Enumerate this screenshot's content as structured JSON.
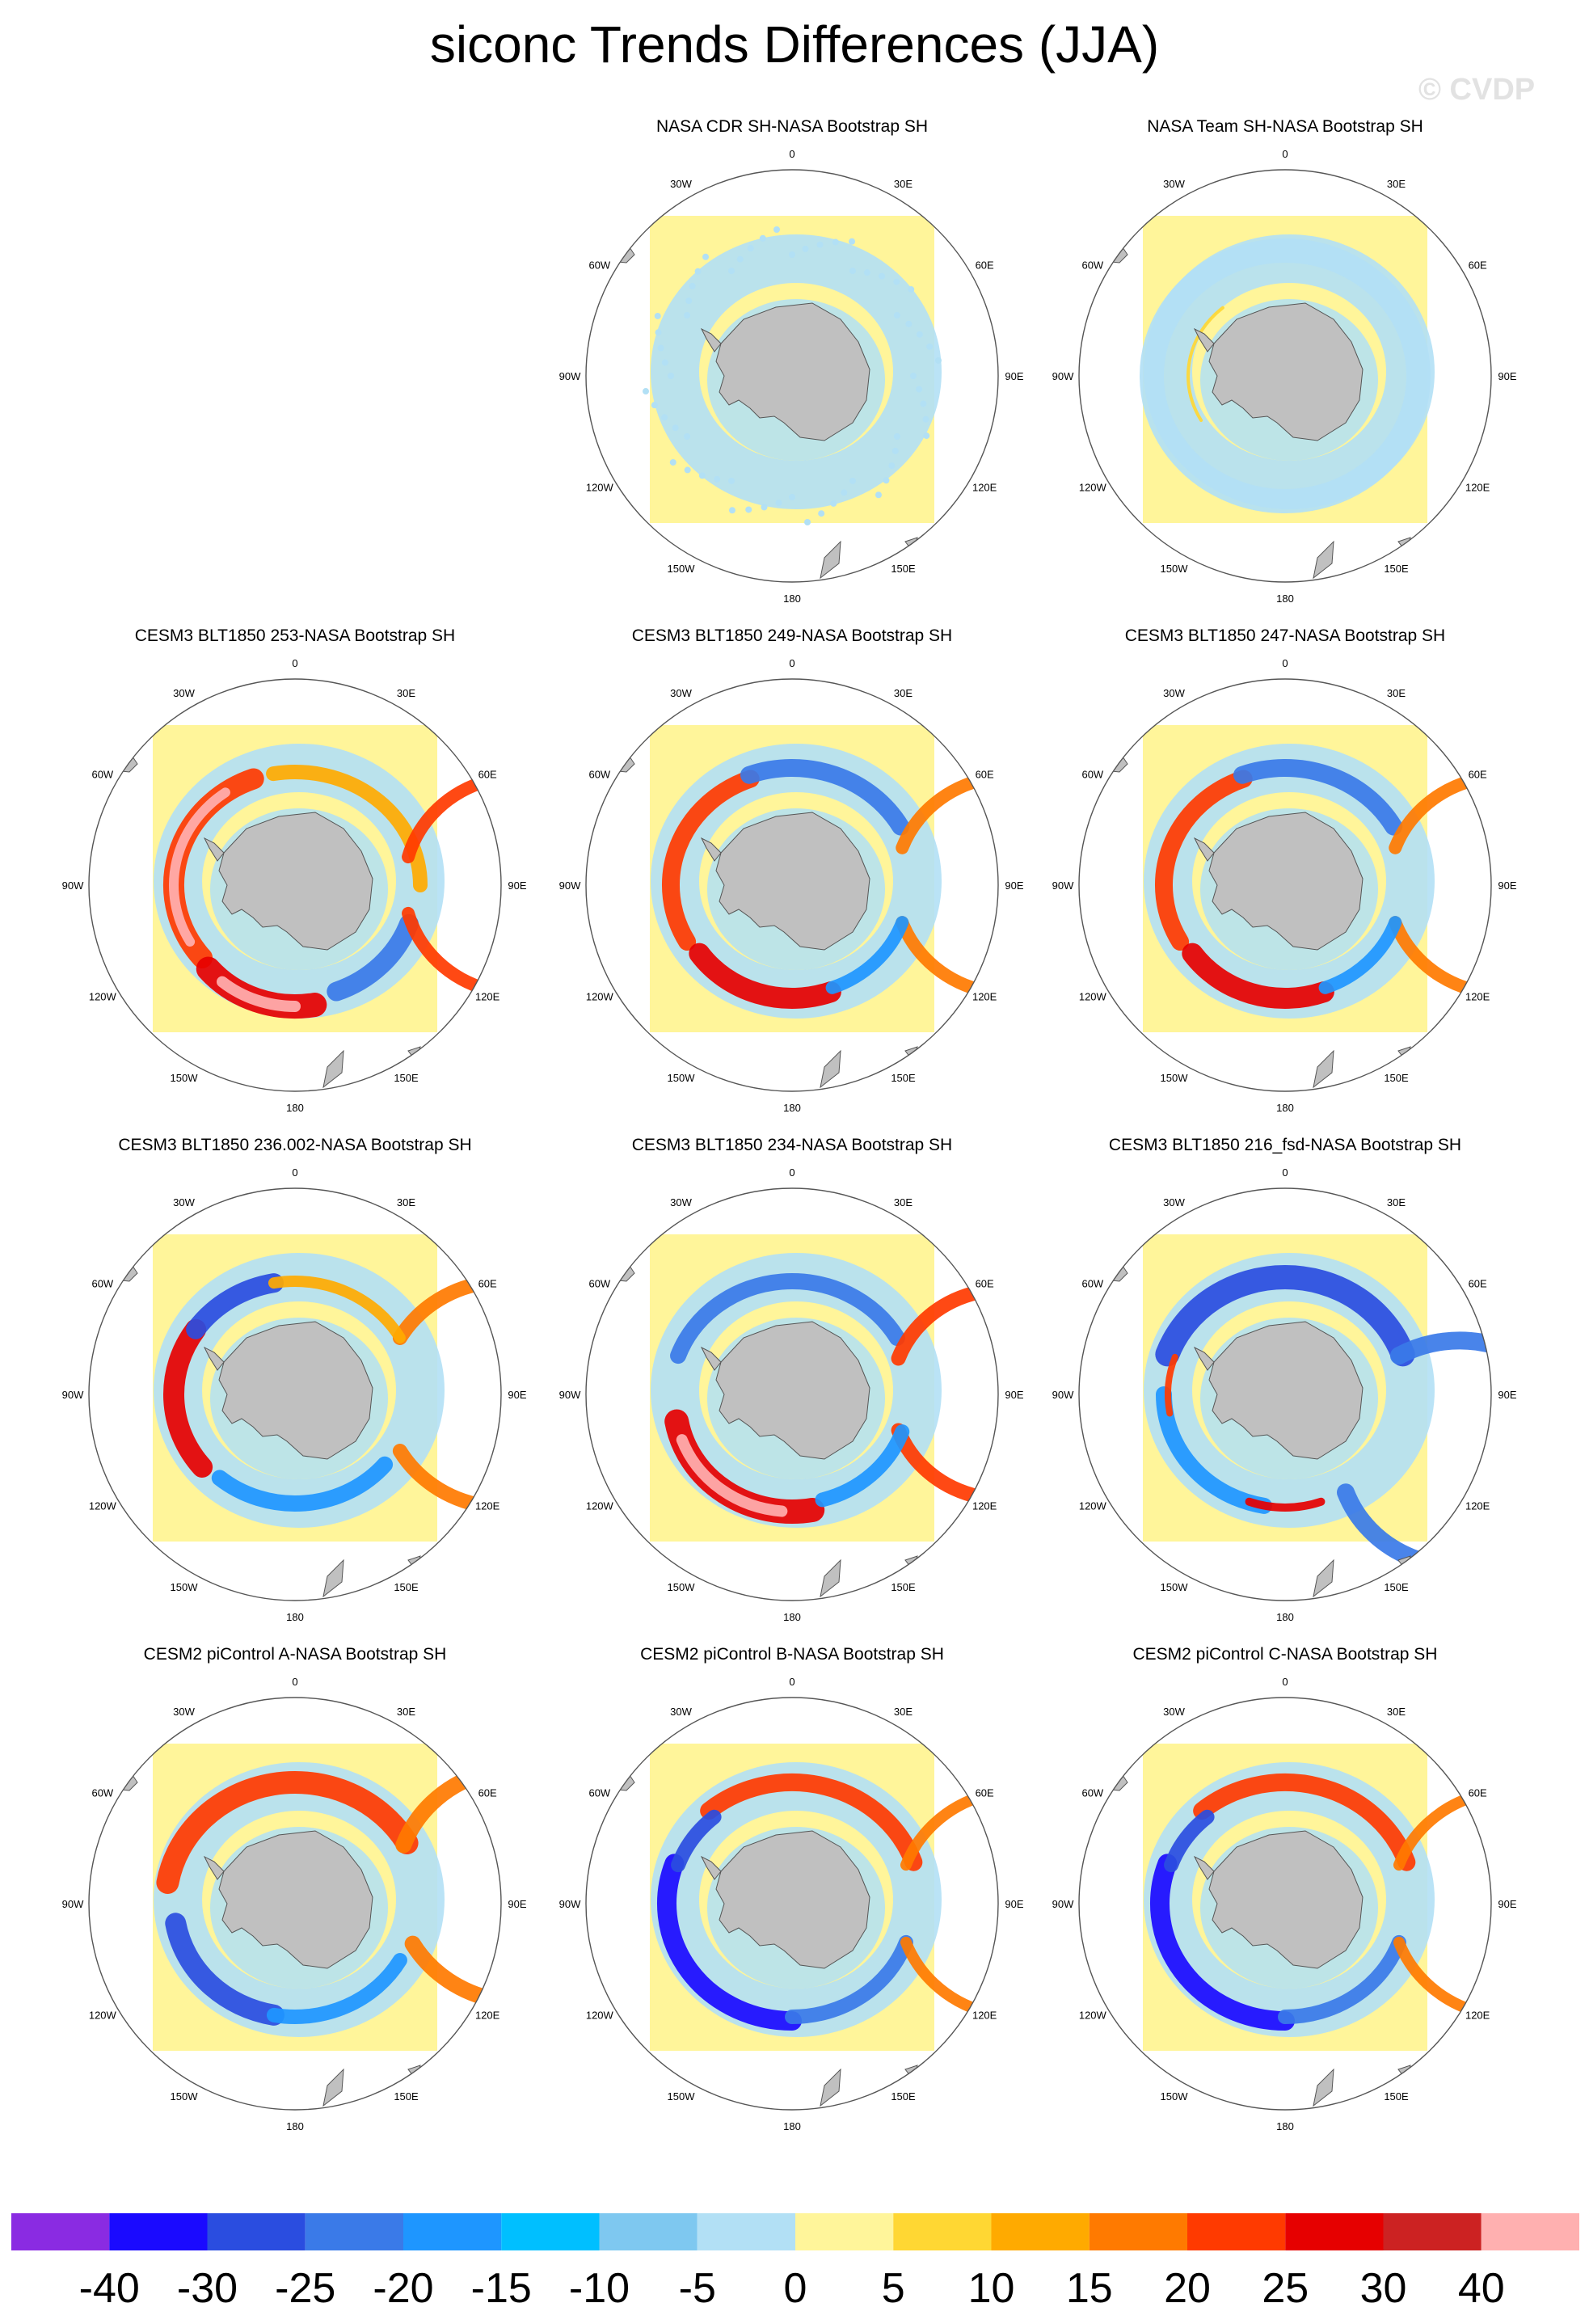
{
  "title": "siconc Trends Differences (JJA)",
  "watermark": "© CVDP",
  "lon_labels": [
    "0",
    "30E",
    "60E",
    "90E",
    "120E",
    "150E",
    "180",
    "150W",
    "120W",
    "90W",
    "60W",
    "30W"
  ],
  "panels": [
    {
      "id": "p01",
      "title": "NASA CDR SH-NASA Bootstrap SH",
      "pattern": "faint"
    },
    {
      "id": "p02",
      "title": "NASA Team SH-NASA Bootstrap SH",
      "pattern": "faint-ring"
    },
    {
      "id": "p03",
      "title": "CESM3 BLT1850 253-NASA Bootstrap SH",
      "pattern": "warm-strong"
    },
    {
      "id": "p04",
      "title": "CESM3 BLT1850 249-NASA Bootstrap SH",
      "pattern": "warm-mixed"
    },
    {
      "id": "p05",
      "title": "CESM3 BLT1850 247-NASA Bootstrap SH",
      "pattern": "warm-mixed"
    },
    {
      "id": "p06",
      "title": "CESM3 BLT1850 236.002-NASA Bootstrap SH",
      "pattern": "warm-west"
    },
    {
      "id": "p07",
      "title": "CESM3 BLT1850 234-NASA Bootstrap SH",
      "pattern": "warm-ross"
    },
    {
      "id": "p08",
      "title": "CESM3 BLT1850 216_fsd-NASA Bootstrap SH",
      "pattern": "cool"
    },
    {
      "id": "p09",
      "title": "CESM2 piControl A-NASA Bootstrap SH",
      "pattern": "ring-warm-north"
    },
    {
      "id": "p10",
      "title": "CESM2 piControl B-NASA Bootstrap SH",
      "pattern": "ring-cool-south"
    },
    {
      "id": "p11",
      "title": "CESM2 piControl C-NASA Bootstrap SH",
      "pattern": "ring-cool-south"
    }
  ],
  "colorbar": {
    "colors": [
      "#8a2be2",
      "#1a0aff",
      "#2a4de0",
      "#3a7ae8",
      "#1e96ff",
      "#00bfff",
      "#7ec8f0",
      "#b2e0f5",
      "#fff59a",
      "#ffd733",
      "#ffaa00",
      "#ff7a00",
      "#ff3a00",
      "#e60000",
      "#cc2222",
      "#ffb0b0"
    ],
    "tick_labels": [
      "-40",
      "-30",
      "-25",
      "-20",
      "-15",
      "-10",
      "-5",
      "0",
      "5",
      "10",
      "15",
      "20",
      "25",
      "30",
      "40"
    ]
  }
}
